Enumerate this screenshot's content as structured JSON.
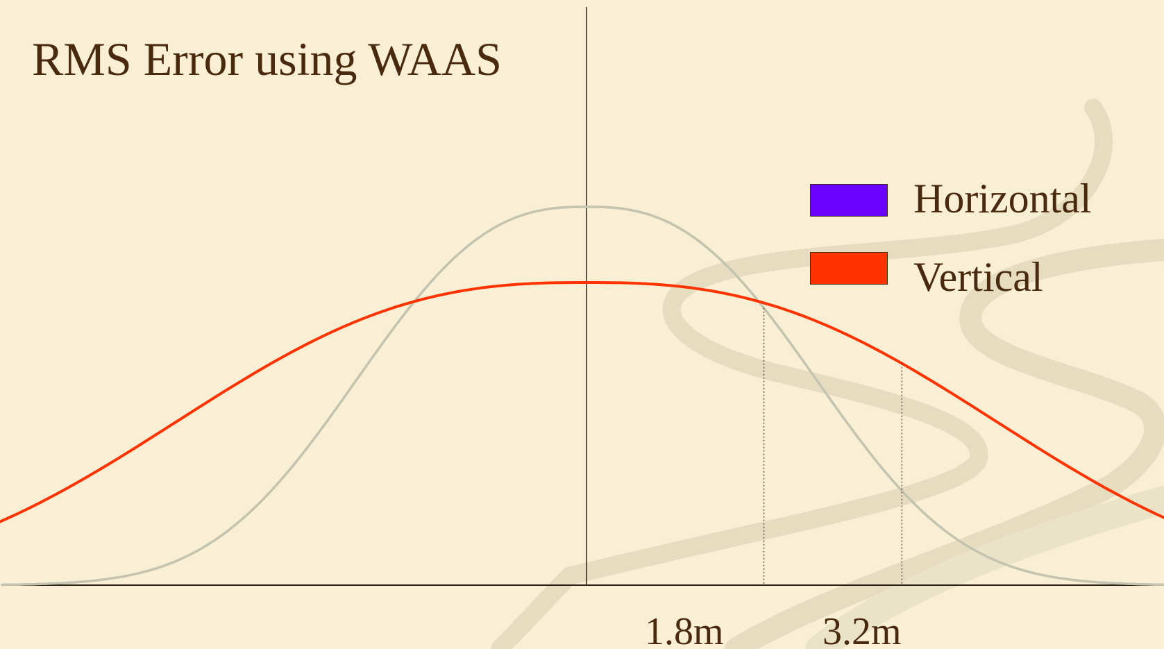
{
  "slide": {
    "title": "RMS Error using WAAS"
  },
  "chart_data": {
    "type": "line",
    "title": "RMS Error using WAAS",
    "xlabel": "",
    "ylabel": "",
    "x_tick_labels": [
      "1.8m",
      "3.2m"
    ],
    "x_ticks": [
      1.8,
      3.2
    ],
    "legend_position": "top-right",
    "grid": false,
    "series": [
      {
        "name": "Horizontal",
        "legend_color": "#6a00ff",
        "line_color": "#c4c3b0",
        "sigma": 1.8,
        "relative_peak": 1.0
      },
      {
        "name": "Vertical",
        "legend_color": "#ff3300",
        "line_color": "#ff3300",
        "sigma": 3.2,
        "relative_peak": 0.8
      }
    ]
  },
  "colors": {
    "background": "#f8efd4",
    "text": "#4a2a0e",
    "axis": "#2a2015",
    "swirl": "#e2d9bd"
  }
}
